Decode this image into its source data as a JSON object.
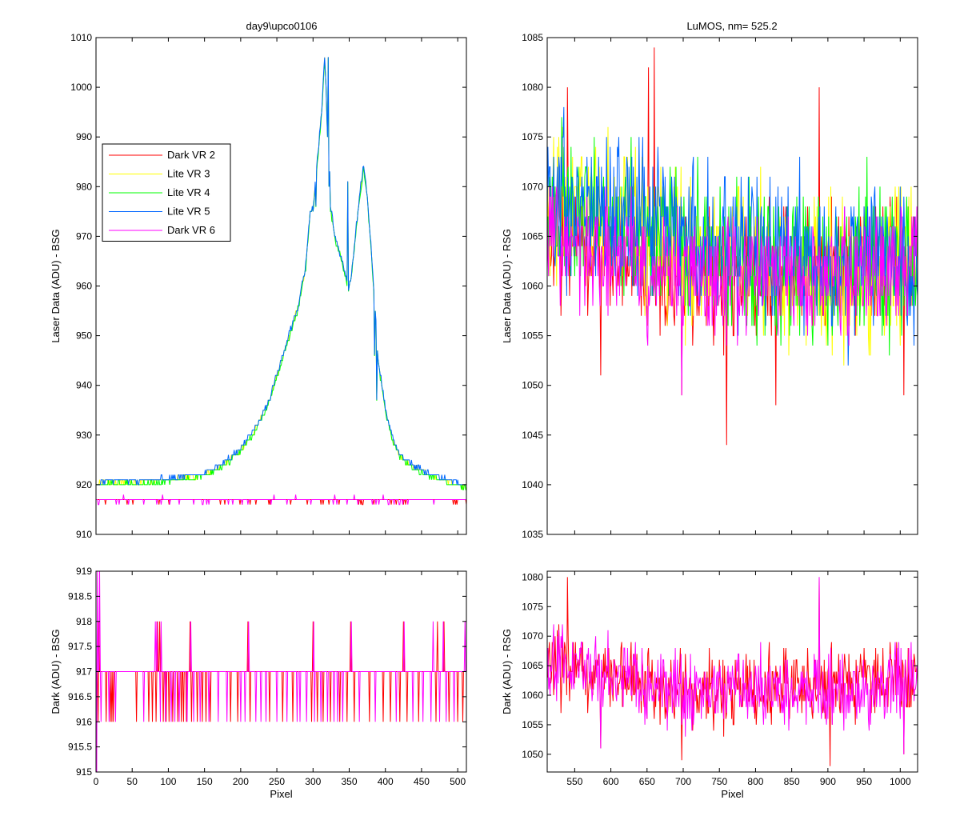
{
  "figure": {
    "left_title": "day9\\upco0106",
    "right_title": "LuMOS, nm= 525.2"
  },
  "chart_data": [
    {
      "type": "line",
      "id": "laser_bsg",
      "title": "day9\\upco0106",
      "xlabel": "",
      "ylabel": "Laser Data (ADU) - BSG",
      "xlim": [
        0,
        512
      ],
      "ylim": [
        910,
        1010
      ],
      "xticks": [
        0,
        50,
        100,
        150,
        200,
        250,
        300,
        350,
        400,
        450,
        500
      ],
      "xtick_labels_shown": false,
      "yticks": [
        910,
        920,
        930,
        940,
        950,
        960,
        970,
        980,
        990,
        1000,
        1010
      ],
      "legend": {
        "position": "upper-left"
      },
      "series": [
        {
          "name": "Dark VR 2",
          "color": "#ff0000",
          "kind": "dark",
          "baseline": 917,
          "values_range": [
            916,
            917
          ]
        },
        {
          "name": "Lite VR 3",
          "color": "#ffff00",
          "kind": "peak",
          "offset": 0.0
        },
        {
          "name": "Lite VR 4",
          "color": "#00ff00",
          "kind": "peak",
          "offset": -0.3
        },
        {
          "name": "Lite VR 5",
          "color": "#0066ff",
          "kind": "peak",
          "offset": 0.3
        },
        {
          "name": "Dark VR 6",
          "color": "#ff00ff",
          "kind": "dark",
          "baseline": 917,
          "values_range": [
            916,
            918
          ]
        }
      ],
      "peak_profile": {
        "x": [
          0,
          10,
          60,
          100,
          150,
          180,
          200,
          220,
          240,
          250,
          265,
          280,
          290,
          296,
          300,
          306,
          312,
          316,
          318,
          320,
          322,
          324,
          330,
          340,
          348,
          350,
          352,
          355,
          360,
          366,
          370,
          375,
          380,
          386,
          390,
          400,
          410,
          420,
          430,
          440,
          460,
          480,
          500,
          512
        ],
        "y": [
          920,
          920.5,
          920.5,
          921,
          922,
          924.5,
          927,
          931,
          937,
          942,
          949,
          956,
          964,
          975,
          975,
          985,
          995,
          1006,
          1000,
          990,
          980,
          976,
          970,
          965,
          960,
          960,
          961,
          965,
          972,
          980,
          984,
          978,
          968,
          955,
          945,
          935,
          929,
          926,
          924.5,
          923.5,
          922,
          921,
          920,
          919.5
        ]
      },
      "spikes": [
        [
          299,
          976
        ],
        [
          304,
          976
        ],
        [
          321,
          1006
        ],
        [
          323,
          983
        ],
        [
          348,
          981
        ],
        [
          349,
          959
        ],
        [
          370,
          984
        ],
        [
          385,
          946
        ],
        [
          388,
          937
        ]
      ]
    },
    {
      "type": "line",
      "id": "dark_bsg",
      "title": "",
      "xlabel": "Pixel",
      "ylabel": "Dark (ADU) - BSG",
      "xlim": [
        0,
        512
      ],
      "ylim": [
        915,
        919
      ],
      "xticks": [
        0,
        50,
        100,
        150,
        200,
        250,
        300,
        350,
        400,
        450,
        500
      ],
      "yticks": [
        915,
        915.5,
        916,
        916.5,
        917,
        917.5,
        918,
        918.5,
        919
      ],
      "series": [
        {
          "name": "Dark VR 2",
          "color": "#ff0000",
          "baseline": 917,
          "dips_to": 916,
          "spikes_to": 918,
          "dip_pixels": [
            3,
            14,
            20,
            22,
            24,
            56,
            73,
            78,
            83,
            93,
            97,
            101,
            106,
            113,
            118,
            121,
            125,
            132,
            140,
            147,
            152,
            158,
            186,
            196,
            213,
            240,
            258,
            272,
            298,
            306,
            314,
            324,
            337,
            347,
            357,
            378,
            397,
            407,
            420,
            430,
            446,
            470,
            488,
            500,
            507
          ],
          "spike_pixels": [
            4,
            85,
            88,
            130,
            210,
            300,
            352,
            425,
            472,
            481
          ]
        },
        {
          "name": "Dark VR 6",
          "color": "#ff00ff",
          "baseline": 917,
          "dips_to": 916,
          "spikes_to": 918,
          "dip_pixels": [
            7,
            18,
            27,
            66,
            89,
            96,
            104,
            109,
            115,
            126,
            135,
            144,
            156,
            169,
            181,
            200,
            206,
            221,
            228,
            235,
            250,
            264,
            278,
            282,
            291,
            302,
            311,
            320,
            329,
            334,
            341,
            364,
            386,
            415,
            438,
            452,
            463,
            475,
            484,
            495
          ],
          "spike_pixels": [
            0,
            1,
            2,
            5,
            82,
            84,
            90,
            131,
            211,
            301,
            353,
            426,
            466,
            480,
            510
          ]
        }
      ],
      "extremes": [
        [
          1,
          915
        ],
        [
          2,
          919
        ],
        [
          5,
          919
        ]
      ]
    },
    {
      "type": "line",
      "id": "laser_rsg",
      "title": "LuMOS, nm= 525.2",
      "xlabel": "",
      "ylabel": "Laser Data (ADU) - RSG",
      "xlim": [
        512,
        1024
      ],
      "ylim": [
        1035,
        1085
      ],
      "xticks": [
        550,
        600,
        650,
        700,
        750,
        800,
        850,
        900,
        950,
        1000
      ],
      "xtick_labels_shown": false,
      "yticks": [
        1035,
        1040,
        1045,
        1050,
        1055,
        1060,
        1065,
        1070,
        1075,
        1080,
        1085
      ],
      "series": [
        {
          "name": "Dark VR 2",
          "color": "#ff0000",
          "trend": [
            [
              512,
              1066
            ],
            [
              600,
              1063
            ],
            [
              700,
              1060
            ],
            [
              800,
              1061
            ],
            [
              900,
              1062
            ],
            [
              1024,
              1063
            ]
          ],
          "noise": 5
        },
        {
          "name": "Lite VR 3",
          "color": "#ffff00",
          "trend": [
            [
              512,
              1068
            ],
            [
              600,
              1067
            ],
            [
              700,
              1064
            ],
            [
              800,
              1062
            ],
            [
              900,
              1061
            ],
            [
              1024,
              1062
            ]
          ],
          "noise": 6
        },
        {
          "name": "Lite VR 4",
          "color": "#00ff00",
          "trend": [
            [
              512,
              1067
            ],
            [
              600,
              1067
            ],
            [
              700,
              1064
            ],
            [
              800,
              1062
            ],
            [
              900,
              1062
            ],
            [
              1024,
              1062
            ]
          ],
          "noise": 6
        },
        {
          "name": "Lite VR 5",
          "color": "#0066ff",
          "trend": [
            [
              512,
              1068
            ],
            [
              600,
              1068
            ],
            [
              650,
              1067
            ],
            [
              700,
              1065
            ],
            [
              800,
              1063
            ],
            [
              900,
              1063
            ],
            [
              1024,
              1062
            ]
          ],
          "noise": 6
        },
        {
          "name": "Dark VR 6",
          "color": "#ff00ff",
          "trend": [
            [
              512,
              1066
            ],
            [
              600,
              1063
            ],
            [
              700,
              1061
            ],
            [
              800,
              1061
            ],
            [
              900,
              1061
            ],
            [
              1024,
              1062
            ]
          ],
          "noise": 5
        }
      ],
      "notable_points": [
        [
          540,
          1080
        ],
        [
          586,
          1051
        ],
        [
          652,
          1082
        ],
        [
          660,
          1084
        ],
        [
          698,
          1049
        ],
        [
          760,
          1044
        ],
        [
          828,
          1048
        ],
        [
          888,
          1080
        ],
        [
          1005,
          1049
        ]
      ]
    },
    {
      "type": "line",
      "id": "dark_rsg",
      "title": "",
      "xlabel": "Pixel",
      "ylabel": "Dark (ADU) - RSG",
      "xlim": [
        512,
        1024
      ],
      "ylim": [
        1047,
        1081
      ],
      "xticks": [
        550,
        600,
        650,
        700,
        750,
        800,
        850,
        900,
        950,
        1000
      ],
      "yticks": [
        1050,
        1055,
        1060,
        1065,
        1070,
        1075,
        1080
      ],
      "series": [
        {
          "name": "Dark VR 2",
          "color": "#ff0000",
          "trend": [
            [
              512,
              1066
            ],
            [
              600,
              1063
            ],
            [
              700,
              1060
            ],
            [
              800,
              1061
            ],
            [
              900,
              1062
            ],
            [
              1024,
              1063
            ]
          ],
          "noise": 5
        },
        {
          "name": "Dark VR 6",
          "color": "#ff00ff",
          "trend": [
            [
              512,
              1066
            ],
            [
              600,
              1063
            ],
            [
              700,
              1061
            ],
            [
              800,
              1061
            ],
            [
              900,
              1061
            ],
            [
              1024,
              1062
            ]
          ],
          "noise": 5
        }
      ],
      "notable_points": [
        [
          540,
          1080
        ],
        [
          586,
          1051
        ],
        [
          698,
          1049
        ],
        [
          888,
          1080
        ],
        [
          903,
          1048
        ],
        [
          1005,
          1050
        ]
      ]
    }
  ]
}
